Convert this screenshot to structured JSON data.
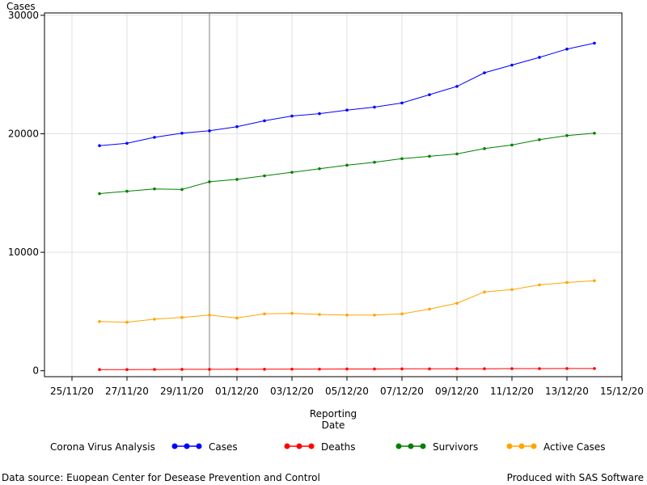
{
  "chart_data": {
    "type": "line",
    "title": "",
    "ylabel": "Cases",
    "xlabel": [
      "Reporting",
      "Date"
    ],
    "x_ticks": [
      "25/11/20",
      "27/11/20",
      "29/11/20",
      "01/12/20",
      "03/12/20",
      "05/12/20",
      "07/12/20",
      "09/12/20",
      "11/12/20",
      "13/12/20",
      "15/12/20"
    ],
    "y_ticks": [
      0,
      10000,
      20000,
      30000
    ],
    "xlim": [
      "2020-11-24",
      "2020-12-15"
    ],
    "ylim": [
      -500,
      30200
    ],
    "grid": true,
    "reference_line_x": "2020-11-30",
    "x": [
      "2020-11-26",
      "2020-11-27",
      "2020-11-28",
      "2020-11-29",
      "2020-11-30",
      "2020-12-01",
      "2020-12-02",
      "2020-12-03",
      "2020-12-04",
      "2020-12-05",
      "2020-12-06",
      "2020-12-07",
      "2020-12-08",
      "2020-12-09",
      "2020-12-10",
      "2020-12-11",
      "2020-12-12",
      "2020-12-13",
      "2020-12-14"
    ],
    "series": [
      {
        "name": "Cases",
        "color": "#0000ff",
        "values": [
          19000,
          19200,
          19700,
          20050,
          20250,
          20600,
          21100,
          21500,
          21700,
          22000,
          22250,
          22600,
          23300,
          24000,
          25150,
          25800,
          26450,
          27150,
          27650
        ]
      },
      {
        "name": "Deaths",
        "color": "#ff0000",
        "values": [
          100,
          100,
          110,
          120,
          120,
          130,
          130,
          140,
          140,
          150,
          150,
          160,
          160,
          170,
          170,
          180,
          180,
          190,
          190
        ]
      },
      {
        "name": "Survivors",
        "color": "#008000",
        "values": [
          14950,
          15150,
          15350,
          15300,
          15950,
          16150,
          16450,
          16750,
          17050,
          17350,
          17600,
          17900,
          18100,
          18300,
          18750,
          19050,
          19500,
          19850,
          20050
        ]
      },
      {
        "name": "Active Cases",
        "color": "#ffa500",
        "values": [
          4150,
          4100,
          4350,
          4500,
          4700,
          4450,
          4800,
          4850,
          4750,
          4700,
          4700,
          4800,
          5200,
          5700,
          6650,
          6850,
          7250,
          7450,
          7600
        ]
      }
    ],
    "legend": {
      "label": "Corona Virus Analysis",
      "placement": "bottom"
    }
  },
  "footer": {
    "source": "Data source: Euopean Center for Desease Prevention and Control",
    "produced": "Produced with SAS Software"
  }
}
